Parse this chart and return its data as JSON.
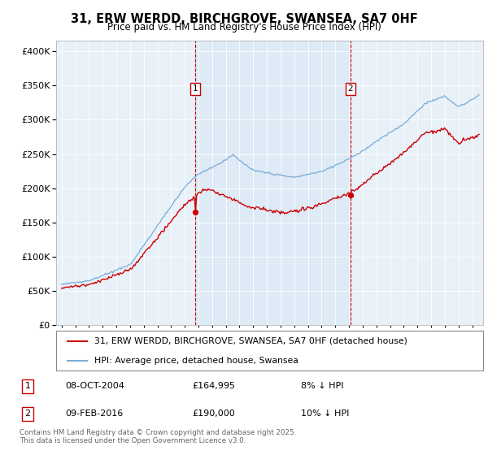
{
  "title": "31, ERW WERDD, BIRCHGROVE, SWANSEA, SA7 0HF",
  "subtitle": "Price paid vs. HM Land Registry's House Price Index (HPI)",
  "legend_line1": "31, ERW WERDD, BIRCHGROVE, SWANSEA, SA7 0HF (detached house)",
  "legend_line2": "HPI: Average price, detached house, Swansea",
  "marker1_date": "08-OCT-2004",
  "marker1_price": "£164,995",
  "marker1_note": "8% ↓ HPI",
  "marker2_date": "09-FEB-2016",
  "marker2_price": "£190,000",
  "marker2_note": "10% ↓ HPI",
  "footer": "Contains HM Land Registry data © Crown copyright and database right 2025.\nThis data is licensed under the Open Government Licence v3.0.",
  "red_color": "#cc0000",
  "blue_color": "#7aacd6",
  "blue_fill": "#cce0f0",
  "bg_color": "#e8f0f8",
  "marker1_x": 2004.77,
  "marker2_x": 2016.1
}
